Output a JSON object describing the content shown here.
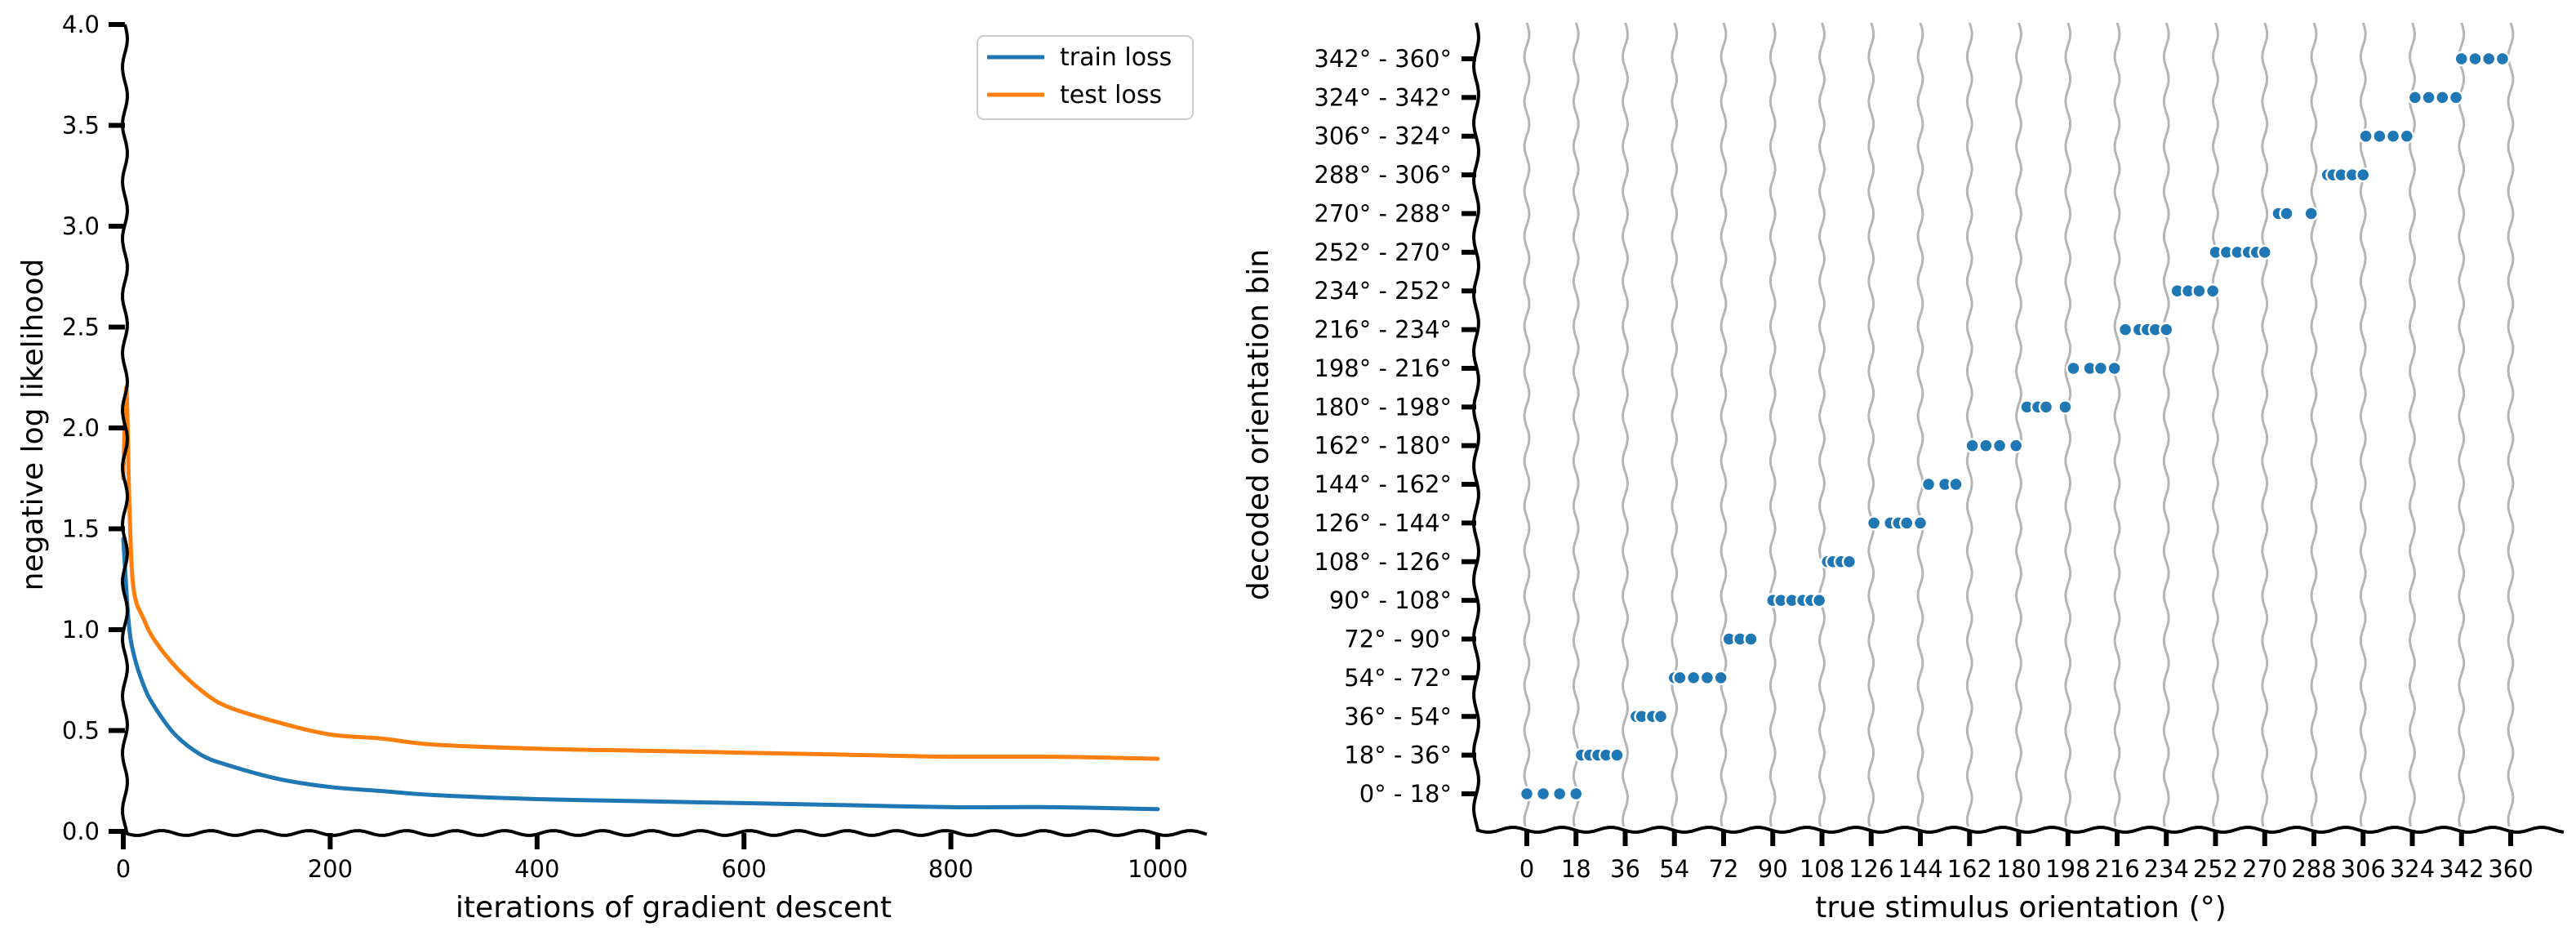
{
  "chart_data": [
    {
      "type": "line",
      "xlabel": "iterations of gradient descent",
      "ylabel": "negative log likelihood",
      "xlim": [
        0,
        1000
      ],
      "ylim": [
        0,
        4.0
      ],
      "xticks": [
        "0",
        "200",
        "400",
        "600",
        "800",
        "1000"
      ],
      "yticks": [
        "0.0",
        "0.5",
        "1.0",
        "1.5",
        "2.0",
        "2.5",
        "3.0",
        "3.5",
        "4.0"
      ],
      "legend_position": "top-right",
      "series": [
        {
          "name": "train loss",
          "color": "#1f77b4",
          "x": [
            0,
            5,
            10,
            20,
            30,
            50,
            75,
            100,
            150,
            200,
            250,
            300,
            400,
            500,
            600,
            700,
            800,
            900,
            1000
          ],
          "y": [
            1.45,
            1.05,
            0.88,
            0.72,
            0.62,
            0.48,
            0.38,
            0.33,
            0.26,
            0.22,
            0.2,
            0.18,
            0.16,
            0.15,
            0.14,
            0.13,
            0.12,
            0.12,
            0.11
          ]
        },
        {
          "name": "test loss",
          "color": "#ff7f0e",
          "x": [
            0,
            3,
            6,
            10,
            20,
            30,
            50,
            75,
            100,
            150,
            200,
            250,
            300,
            400,
            500,
            600,
            700,
            800,
            900,
            1000
          ],
          "y": [
            1.75,
            2.2,
            1.6,
            1.2,
            1.05,
            0.95,
            0.82,
            0.7,
            0.62,
            0.54,
            0.48,
            0.46,
            0.43,
            0.41,
            0.4,
            0.39,
            0.38,
            0.37,
            0.37,
            0.36
          ]
        }
      ]
    },
    {
      "type": "scatter",
      "xlabel": "true stimulus orientation (°)",
      "ylabel": "decoded orientation bin",
      "xlim": [
        -18,
        378
      ],
      "ylim": [
        -1,
        19
      ],
      "grid": "vertical lines at 18° intervals",
      "xticks": [
        "0",
        "18",
        "36",
        "54",
        "72",
        "90",
        "108",
        "126",
        "144",
        "162",
        "180",
        "198",
        "216",
        "234",
        "252",
        "270",
        "288",
        "306",
        "324",
        "342",
        "360"
      ],
      "yticks": [
        "0° - 18°",
        "18° - 36°",
        "36° - 54°",
        "54° - 72°",
        "72° - 90°",
        "90° - 108°",
        "108° - 126°",
        "126° - 144°",
        "144° - 162°",
        "162° - 180°",
        "180° - 198°",
        "198° - 216°",
        "216° - 234°",
        "234° - 252°",
        "252° - 270°",
        "270° - 288°",
        "288° - 306°",
        "306° - 324°",
        "324° - 342°",
        "342° - 360°"
      ],
      "color": "#1f77b4",
      "points": [
        {
          "x": 0,
          "y": 0
        },
        {
          "x": 6,
          "y": 0
        },
        {
          "x": 12,
          "y": 0
        },
        {
          "x": 18,
          "y": 0
        },
        {
          "x": 20,
          "y": 1
        },
        {
          "x": 23,
          "y": 1
        },
        {
          "x": 26,
          "y": 1
        },
        {
          "x": 29,
          "y": 1
        },
        {
          "x": 33,
          "y": 1
        },
        {
          "x": 40,
          "y": 2
        },
        {
          "x": 42,
          "y": 2
        },
        {
          "x": 46,
          "y": 2
        },
        {
          "x": 49,
          "y": 2
        },
        {
          "x": 54,
          "y": 3
        },
        {
          "x": 56,
          "y": 3
        },
        {
          "x": 61,
          "y": 3
        },
        {
          "x": 66,
          "y": 3
        },
        {
          "x": 71,
          "y": 3
        },
        {
          "x": 74,
          "y": 4
        },
        {
          "x": 78,
          "y": 4
        },
        {
          "x": 82,
          "y": 4
        },
        {
          "x": 90,
          "y": 5
        },
        {
          "x": 93,
          "y": 5
        },
        {
          "x": 97,
          "y": 5
        },
        {
          "x": 101,
          "y": 5
        },
        {
          "x": 104,
          "y": 5
        },
        {
          "x": 107,
          "y": 5
        },
        {
          "x": 110,
          "y": 6
        },
        {
          "x": 112,
          "y": 6
        },
        {
          "x": 115,
          "y": 6
        },
        {
          "x": 118,
          "y": 6
        },
        {
          "x": 127,
          "y": 7
        },
        {
          "x": 133,
          "y": 7
        },
        {
          "x": 136,
          "y": 7
        },
        {
          "x": 139,
          "y": 7
        },
        {
          "x": 144,
          "y": 7
        },
        {
          "x": 147,
          "y": 8
        },
        {
          "x": 153,
          "y": 8
        },
        {
          "x": 157,
          "y": 8
        },
        {
          "x": 163,
          "y": 9
        },
        {
          "x": 168,
          "y": 9
        },
        {
          "x": 173,
          "y": 9
        },
        {
          "x": 179,
          "y": 9
        },
        {
          "x": 183,
          "y": 10
        },
        {
          "x": 187,
          "y": 10
        },
        {
          "x": 190,
          "y": 10
        },
        {
          "x": 197,
          "y": 10
        },
        {
          "x": 200,
          "y": 11
        },
        {
          "x": 206,
          "y": 11
        },
        {
          "x": 210,
          "y": 11
        },
        {
          "x": 215,
          "y": 11
        },
        {
          "x": 219,
          "y": 12
        },
        {
          "x": 224,
          "y": 12
        },
        {
          "x": 227,
          "y": 12
        },
        {
          "x": 230,
          "y": 12
        },
        {
          "x": 234,
          "y": 12
        },
        {
          "x": 238,
          "y": 13
        },
        {
          "x": 242,
          "y": 13
        },
        {
          "x": 246,
          "y": 13
        },
        {
          "x": 251,
          "y": 13
        },
        {
          "x": 252,
          "y": 14
        },
        {
          "x": 256,
          "y": 14
        },
        {
          "x": 260,
          "y": 14
        },
        {
          "x": 264,
          "y": 14
        },
        {
          "x": 267,
          "y": 14
        },
        {
          "x": 270,
          "y": 14
        },
        {
          "x": 275,
          "y": 15
        },
        {
          "x": 278,
          "y": 15
        },
        {
          "x": 287,
          "y": 15
        },
        {
          "x": 293,
          "y": 16
        },
        {
          "x": 295,
          "y": 16
        },
        {
          "x": 298,
          "y": 16
        },
        {
          "x": 302,
          "y": 16
        },
        {
          "x": 306,
          "y": 16
        },
        {
          "x": 307,
          "y": 17
        },
        {
          "x": 312,
          "y": 17
        },
        {
          "x": 317,
          "y": 17
        },
        {
          "x": 322,
          "y": 17
        },
        {
          "x": 325,
          "y": 18
        },
        {
          "x": 330,
          "y": 18
        },
        {
          "x": 335,
          "y": 18
        },
        {
          "x": 340,
          "y": 18
        },
        {
          "x": 342,
          "y": 19
        },
        {
          "x": 347,
          "y": 19
        },
        {
          "x": 352,
          "y": 19
        },
        {
          "x": 357,
          "y": 19
        }
      ]
    }
  ]
}
